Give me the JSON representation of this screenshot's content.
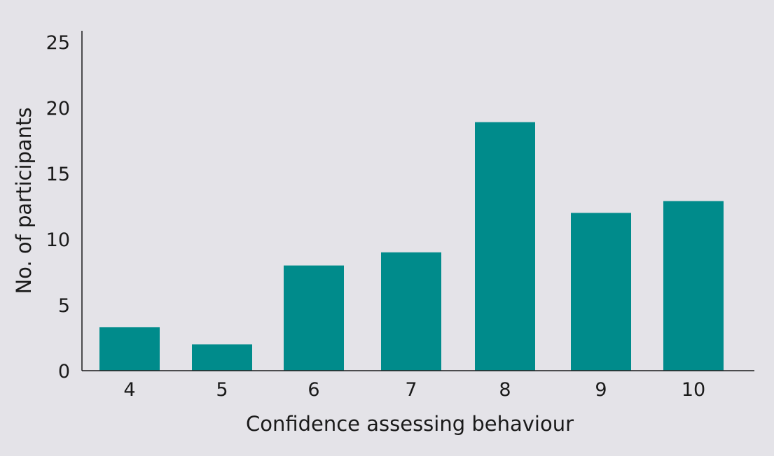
{
  "chart_data": {
    "type": "bar",
    "title": "",
    "xlabel": "Confidence assessing behaviour",
    "ylabel": "No. of participants",
    "categories": [
      "4",
      "5",
      "6",
      "7",
      "8",
      "9",
      "10"
    ],
    "values": [
      3.3,
      2.0,
      8.0,
      9.0,
      18.9,
      12.0,
      12.9
    ],
    "ylim": [
      0,
      25
    ],
    "yticks": [
      "0",
      "5",
      "10",
      "15",
      "20",
      "25"
    ],
    "grid": false,
    "legend": "none",
    "bar_color": "#008b8b",
    "background_color": "#e4e3e8"
  }
}
